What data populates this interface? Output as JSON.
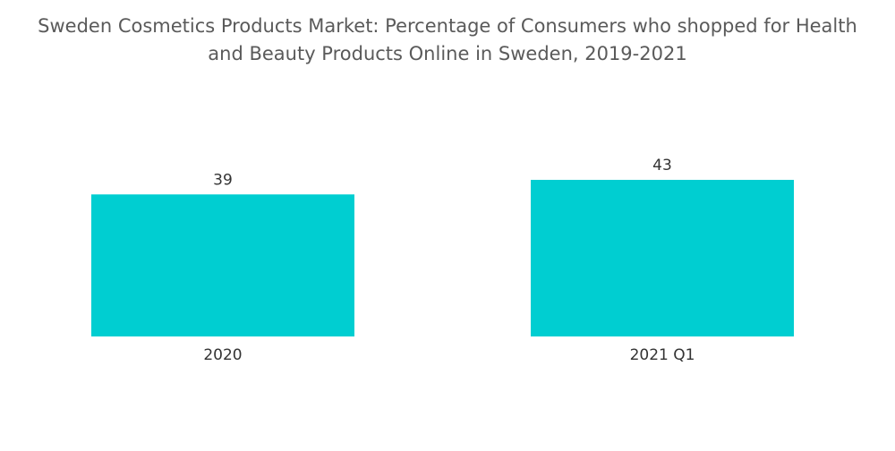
{
  "title_line1": "Sweden Cosmetics Products Market: Percentage of Consumers who shopped for Health",
  "title_line2": "and Beauty Products Online in Sweden, 2019-2021",
  "chart_data": {
    "type": "bar",
    "title": "Sweden Cosmetics Products Market: Percentage of Consumers who shopped for Health and Beauty Products Online in Sweden, 2019-2021",
    "categories": [
      "2020",
      "2021 Q1"
    ],
    "values": [
      39,
      43
    ],
    "xlabel": "",
    "ylabel": "",
    "grid": false,
    "legend": "none",
    "bar_color": "#00CED1"
  }
}
